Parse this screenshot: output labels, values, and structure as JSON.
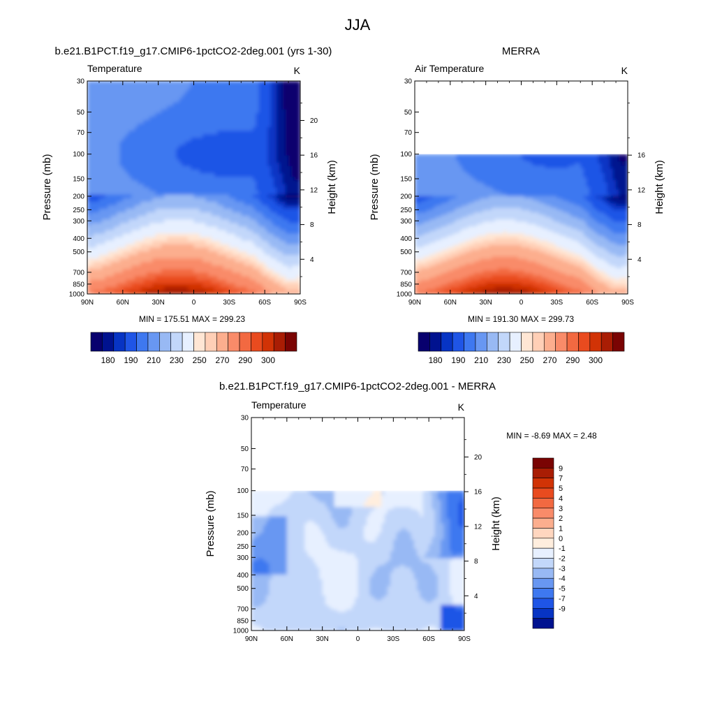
{
  "page": {
    "title": "JJA"
  },
  "colors": {
    "temperature_scale": [
      "#08006e",
      "#00128f",
      "#0734c4",
      "#1f55e6",
      "#3e78f0",
      "#6897f2",
      "#98b9f4",
      "#c2d7fa",
      "#e7f0ff",
      "#ffe6d4",
      "#ffcfb6",
      "#fcae8e",
      "#f98b69",
      "#f26941",
      "#e94b1f",
      "#d13306",
      "#a91d04",
      "#7a0403"
    ],
    "difference_scale": [
      "#08006e",
      "#00128f",
      "#0734c4",
      "#1f55e6",
      "#3e78f0",
      "#6897f2",
      "#98b9f4",
      "#c2d7fa",
      "#e7f0ff",
      "#ffeede",
      "#ffd6bf",
      "#fcae8e",
      "#f98b69",
      "#f26941",
      "#e94b1f",
      "#d13306",
      "#a91d04",
      "#7a0403"
    ]
  },
  "chart_data": [
    {
      "id": "model",
      "type": "heatmap",
      "title": "b.e21.B1PCT.f19_g17.CMIP6-1pctCO2-2deg.001 (yrs 1-30)",
      "left_label": "Temperature",
      "units": "K",
      "xlabel": "",
      "ylabel": "Pressure (mb)",
      "y2label": "Height (km)",
      "x_ticks": [
        "90N",
        "60N",
        "30N",
        "0",
        "30S",
        "60S",
        "90S"
      ],
      "y_ticks": [
        "30",
        "50",
        "70",
        "100",
        "150",
        "200",
        "250",
        "300",
        "400",
        "500",
        "700",
        "850",
        "1000"
      ],
      "y2_ticks": [
        "20",
        "16",
        "12",
        "8",
        "4"
      ],
      "ylim": [
        1000,
        30
      ],
      "log_y": true,
      "stats": "MIN = 175.51  MAX = 299.23",
      "valid_top_mb": 30,
      "field": "temperature",
      "colorbar_labels": [
        "180",
        "190",
        "210",
        "230",
        "250",
        "270",
        "290",
        "300"
      ]
    },
    {
      "id": "obs",
      "type": "heatmap",
      "title": "MERRA",
      "left_label": "Air Temperature",
      "units": "K",
      "xlabel": "",
      "ylabel": "Pressure (mb)",
      "y2label": "Height (km)",
      "x_ticks": [
        "90N",
        "60N",
        "30N",
        "0",
        "30S",
        "60S",
        "90S"
      ],
      "y_ticks": [
        "30",
        "50",
        "70",
        "100",
        "150",
        "200",
        "250",
        "300",
        "400",
        "500",
        "700",
        "850",
        "1000"
      ],
      "y2_ticks": [
        "16",
        "12",
        "8",
        "4"
      ],
      "ylim": [
        1000,
        30
      ],
      "log_y": true,
      "stats": "MIN = 191.30  MAX = 299.73",
      "valid_top_mb": 100,
      "field": "temperature",
      "colorbar_labels": [
        "180",
        "190",
        "210",
        "230",
        "250",
        "270",
        "290",
        "300"
      ]
    },
    {
      "id": "diff",
      "type": "heatmap",
      "title": "b.e21.B1PCT.f19_g17.CMIP6-1pctCO2-2deg.001 - MERRA",
      "left_label": "Temperature",
      "units": "K",
      "xlabel": "",
      "ylabel": "Pressure (mb)",
      "y2label": "Height (km)",
      "x_ticks": [
        "90N",
        "60N",
        "30N",
        "0",
        "30S",
        "60S",
        "90S"
      ],
      "y_ticks": [
        "30",
        "50",
        "70",
        "100",
        "150",
        "200",
        "250",
        "300",
        "400",
        "500",
        "700",
        "850",
        "1000"
      ],
      "y2_ticks": [
        "20",
        "16",
        "12",
        "8",
        "4"
      ],
      "ylim": [
        1000,
        30
      ],
      "log_y": true,
      "stats": "MIN =  -8.69  MAX =   2.48",
      "valid_top_mb": 100,
      "field": "difference",
      "colorbar_labels": [
        "9",
        "7",
        "5",
        "4",
        "3",
        "2",
        "1",
        "0",
        "-1",
        "-2",
        "-3",
        "-4",
        "-5",
        "-7",
        "-9"
      ]
    }
  ]
}
